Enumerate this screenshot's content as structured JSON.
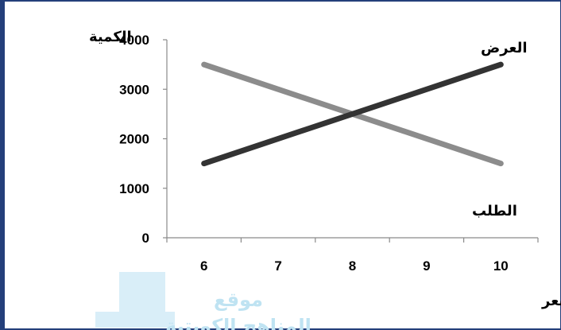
{
  "chart_data": {
    "type": "line",
    "x": [
      6,
      7,
      8,
      9,
      10
    ],
    "xticks": [
      "6",
      "7",
      "8",
      "9",
      "10"
    ],
    "yticks": [
      "0",
      "1000",
      "2000",
      "3000",
      "4000"
    ],
    "ylim": [
      0,
      4000
    ],
    "xlim": [
      5.5,
      10.5
    ],
    "xlabel": "السعر",
    "ylabel": "الكمية",
    "grid": false,
    "series": [
      {
        "name": "العرض",
        "x": [
          6,
          10
        ],
        "values": [
          1500,
          3500
        ],
        "color": "#333333"
      },
      {
        "name": "الطلب",
        "x": [
          6,
          10
        ],
        "values": [
          3500,
          1500
        ],
        "color": "#8c8c8c"
      }
    ]
  },
  "watermark": {
    "text_line1": "موقع",
    "text_line2": "المناهج الكويتية",
    "color": "#bfe3f2"
  }
}
